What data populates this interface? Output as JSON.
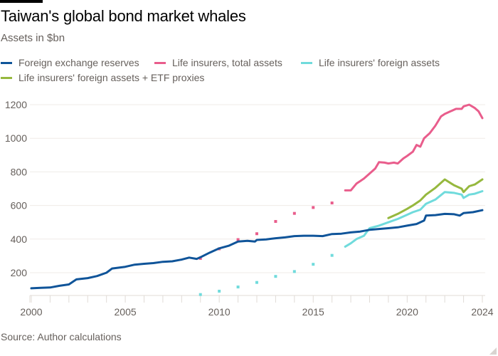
{
  "header": {
    "title": "Taiwan's global bond market whales",
    "subtitle": "Assets in $bn"
  },
  "legend": [
    {
      "label": "Foreign exchange reserves",
      "color": "#0f5499"
    },
    {
      "label": "Life insurers, total assets",
      "color": "#e95d8c"
    },
    {
      "label": "Life insurers' foreign assets",
      "color": "#70dbdc"
    },
    {
      "label": "Life insurers' foreign assets + ETF proxies",
      "color": "#96b83e"
    }
  ],
  "footer": {
    "source": "Source: Author calculations"
  },
  "chart_data": {
    "type": "line",
    "title": "Taiwan's global bond market whales",
    "subtitle": "Assets in $bn",
    "xlabel": "",
    "ylabel": "Assets in $bn",
    "xlim": [
      2000,
      2024.1
    ],
    "ylim": [
      60,
      1240
    ],
    "x_ticks": [
      2000,
      2005,
      2010,
      2015,
      2020,
      2024
    ],
    "y_ticks": [
      200,
      400,
      600,
      800,
      1000,
      1200
    ],
    "grid": true,
    "legend_position": "top",
    "series": [
      {
        "name": "Foreign exchange reserves",
        "color": "#0f5499",
        "style": "line",
        "points": [
          [
            2000.0,
            107
          ],
          [
            2000.5,
            110
          ],
          [
            2001.0,
            112
          ],
          [
            2001.5,
            122
          ],
          [
            2002.0,
            130
          ],
          [
            2002.4,
            160
          ],
          [
            2003.0,
            168
          ],
          [
            2003.5,
            180
          ],
          [
            2004.0,
            200
          ],
          [
            2004.3,
            225
          ],
          [
            2005.0,
            235
          ],
          [
            2005.5,
            248
          ],
          [
            2006.0,
            253
          ],
          [
            2006.5,
            257
          ],
          [
            2007.0,
            265
          ],
          [
            2007.5,
            268
          ],
          [
            2008.0,
            278
          ],
          [
            2008.4,
            290
          ],
          [
            2008.8,
            282
          ],
          [
            2009.0,
            292
          ],
          [
            2009.5,
            320
          ],
          [
            2010.0,
            345
          ],
          [
            2010.5,
            360
          ],
          [
            2011.0,
            385
          ],
          [
            2011.5,
            390
          ],
          [
            2011.9,
            385
          ],
          [
            2012.0,
            395
          ],
          [
            2012.5,
            398
          ],
          [
            2013.0,
            405
          ],
          [
            2013.5,
            410
          ],
          [
            2014.0,
            418
          ],
          [
            2014.5,
            420
          ],
          [
            2015.0,
            420
          ],
          [
            2015.5,
            418
          ],
          [
            2016.0,
            430
          ],
          [
            2016.5,
            432
          ],
          [
            2017.0,
            440
          ],
          [
            2017.5,
            445
          ],
          [
            2018.0,
            455
          ],
          [
            2018.5,
            460
          ],
          [
            2019.0,
            465
          ],
          [
            2019.5,
            470
          ],
          [
            2020.0,
            480
          ],
          [
            2020.5,
            490
          ],
          [
            2020.9,
            510
          ],
          [
            2021.0,
            540
          ],
          [
            2021.5,
            543
          ],
          [
            2022.0,
            550
          ],
          [
            2022.5,
            548
          ],
          [
            2022.8,
            540
          ],
          [
            2023.0,
            555
          ],
          [
            2023.5,
            560
          ],
          [
            2024.0,
            572
          ]
        ]
      },
      {
        "name": "Life insurers, total assets",
        "color": "#e95d8c",
        "style": "markers",
        "points": [
          [
            2009.0,
            285
          ],
          [
            2010.0,
            342
          ],
          [
            2011.0,
            397
          ],
          [
            2012.0,
            432
          ],
          [
            2013.0,
            505
          ],
          [
            2014.0,
            553
          ],
          [
            2015.0,
            588
          ],
          [
            2016.0,
            615
          ]
        ]
      },
      {
        "name": "Life insurers, total assets",
        "color": "#e95d8c",
        "style": "line",
        "points": [
          [
            2016.7,
            690
          ],
          [
            2017.0,
            690
          ],
          [
            2017.3,
            730
          ],
          [
            2017.7,
            760
          ],
          [
            2018.0,
            790
          ],
          [
            2018.3,
            820
          ],
          [
            2018.5,
            858
          ],
          [
            2018.8,
            855
          ],
          [
            2019.0,
            850
          ],
          [
            2019.3,
            855
          ],
          [
            2019.5,
            850
          ],
          [
            2019.8,
            880
          ],
          [
            2020.0,
            895
          ],
          [
            2020.3,
            920
          ],
          [
            2020.5,
            960
          ],
          [
            2020.7,
            950
          ],
          [
            2020.9,
            1000
          ],
          [
            2021.2,
            1030
          ],
          [
            2021.5,
            1075
          ],
          [
            2021.8,
            1130
          ],
          [
            2022.0,
            1145
          ],
          [
            2022.3,
            1160
          ],
          [
            2022.6,
            1175
          ],
          [
            2022.9,
            1175
          ],
          [
            2023.0,
            1190
          ],
          [
            2023.3,
            1200
          ],
          [
            2023.6,
            1180
          ],
          [
            2023.8,
            1160
          ],
          [
            2024.0,
            1120
          ]
        ]
      },
      {
        "name": "Life insurers' foreign assets",
        "color": "#70dbdc",
        "style": "markers",
        "points": [
          [
            2009.0,
            70
          ],
          [
            2010.0,
            90
          ],
          [
            2011.0,
            115
          ],
          [
            2012.0,
            142
          ],
          [
            2013.0,
            178
          ],
          [
            2014.0,
            207
          ],
          [
            2015.0,
            250
          ],
          [
            2016.0,
            303
          ]
        ]
      },
      {
        "name": "Life insurers' foreign assets",
        "color": "#70dbdc",
        "style": "line",
        "points": [
          [
            2016.7,
            355
          ],
          [
            2017.0,
            375
          ],
          [
            2017.3,
            400
          ],
          [
            2017.7,
            420
          ],
          [
            2018.0,
            465
          ],
          [
            2018.5,
            480
          ],
          [
            2019.0,
            500
          ],
          [
            2019.5,
            520
          ],
          [
            2020.0,
            545
          ],
          [
            2020.3,
            560
          ],
          [
            2020.7,
            575
          ],
          [
            2021.0,
            610
          ],
          [
            2021.5,
            635
          ],
          [
            2022.0,
            680
          ],
          [
            2022.5,
            675
          ],
          [
            2022.9,
            665
          ],
          [
            2023.0,
            645
          ],
          [
            2023.3,
            665
          ],
          [
            2023.6,
            670
          ],
          [
            2024.0,
            685
          ]
        ]
      },
      {
        "name": "Life insurers' foreign assets + ETF proxies",
        "color": "#96b83e",
        "style": "line",
        "points": [
          [
            2019.0,
            525
          ],
          [
            2019.5,
            550
          ],
          [
            2020.0,
            580
          ],
          [
            2020.3,
            600
          ],
          [
            2020.7,
            630
          ],
          [
            2021.0,
            665
          ],
          [
            2021.5,
            705
          ],
          [
            2022.0,
            755
          ],
          [
            2022.5,
            720
          ],
          [
            2022.9,
            700
          ],
          [
            2023.0,
            680
          ],
          [
            2023.3,
            715
          ],
          [
            2023.6,
            725
          ],
          [
            2024.0,
            755
          ]
        ]
      }
    ]
  }
}
